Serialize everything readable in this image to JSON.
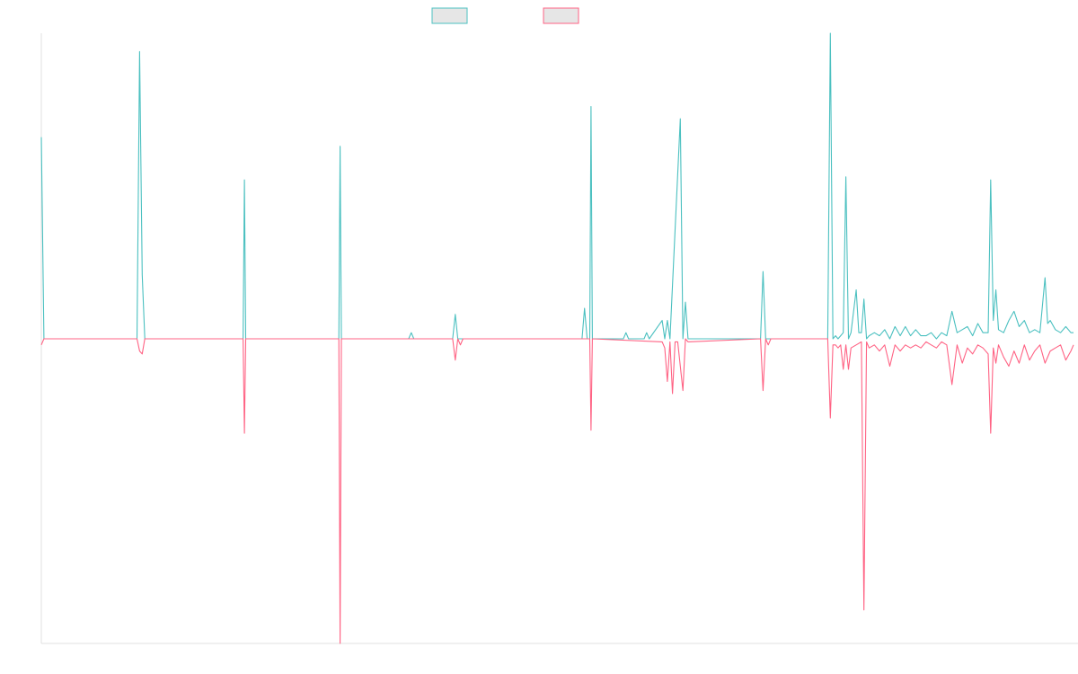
{
  "chart_data": {
    "type": "line",
    "title": "",
    "xlabel": "",
    "ylabel": "",
    "grid": false,
    "legend_position": "top-center",
    "ylim": [
      -1,
      1
    ],
    "x_count": 400,
    "series": [
      {
        "color": "#4bc0c0",
        "fill": "#e6e6e6",
        "points": [
          [
            0,
            0.66
          ],
          [
            1,
            0.0
          ],
          [
            30,
            0.0
          ],
          [
            37,
            0.0
          ],
          [
            38,
            0.94
          ],
          [
            39,
            0.21
          ],
          [
            40,
            0.0
          ],
          [
            78,
            0.0
          ],
          [
            78.5,
            0.52
          ],
          [
            79,
            0.0
          ],
          [
            115,
            0.0
          ],
          [
            115.5,
            0.63
          ],
          [
            116,
            0.0
          ],
          [
            142,
            0.0
          ],
          [
            143,
            0.02
          ],
          [
            144,
            0.0
          ],
          [
            159,
            0.0
          ],
          [
            160,
            0.08
          ],
          [
            161,
            0.0
          ],
          [
            209,
            0.0
          ],
          [
            210,
            0.1
          ],
          [
            211,
            0.0
          ],
          [
            212,
            0.0
          ],
          [
            212.5,
            0.76
          ],
          [
            213,
            0.0
          ],
          [
            225,
            0.0
          ],
          [
            226,
            0.02
          ],
          [
            227,
            0.0
          ],
          [
            233,
            0.0
          ],
          [
            234,
            0.02
          ],
          [
            235,
            0.0
          ],
          [
            240,
            0.06
          ],
          [
            241,
            0.0
          ],
          [
            242,
            0.06
          ],
          [
            243,
            0.0
          ],
          [
            247,
            0.72
          ],
          [
            248,
            0.0
          ],
          [
            249,
            0.12
          ],
          [
            250,
            0.0
          ],
          [
            278,
            0.0
          ],
          [
            279,
            0.22
          ],
          [
            280,
            0.0
          ],
          [
            300,
            0.0
          ],
          [
            304,
            0.0
          ],
          [
            305,
            1.0
          ],
          [
            306,
            0.0
          ],
          [
            307,
            0.01
          ],
          [
            308,
            0.0
          ],
          [
            309,
            0.01
          ],
          [
            310,
            0.02
          ],
          [
            311,
            0.53
          ],
          [
            312,
            0.0
          ],
          [
            313,
            0.02
          ],
          [
            315,
            0.16
          ],
          [
            316,
            0.02
          ],
          [
            317,
            0.02
          ],
          [
            318,
            0.13
          ],
          [
            319,
            0.0
          ],
          [
            320,
            0.01
          ],
          [
            322,
            0.02
          ],
          [
            324,
            0.01
          ],
          [
            326,
            0.03
          ],
          [
            328,
            0.0
          ],
          [
            330,
            0.04
          ],
          [
            332,
            0.01
          ],
          [
            334,
            0.04
          ],
          [
            336,
            0.01
          ],
          [
            338,
            0.03
          ],
          [
            340,
            0.01
          ],
          [
            342,
            0.01
          ],
          [
            344,
            0.02
          ],
          [
            346,
            0.0
          ],
          [
            348,
            0.02
          ],
          [
            350,
            0.01
          ],
          [
            352,
            0.09
          ],
          [
            354,
            0.02
          ],
          [
            356,
            0.03
          ],
          [
            358,
            0.04
          ],
          [
            360,
            0.01
          ],
          [
            362,
            0.05
          ],
          [
            364,
            0.02
          ],
          [
            366,
            0.02
          ],
          [
            367,
            0.52
          ],
          [
            368,
            0.06
          ],
          [
            369,
            0.16
          ],
          [
            370,
            0.03
          ],
          [
            372,
            0.02
          ],
          [
            374,
            0.06
          ],
          [
            376,
            0.09
          ],
          [
            378,
            0.04
          ],
          [
            380,
            0.06
          ],
          [
            382,
            0.02
          ],
          [
            384,
            0.03
          ],
          [
            386,
            0.02
          ],
          [
            388,
            0.2
          ],
          [
            389,
            0.05
          ],
          [
            390,
            0.06
          ],
          [
            392,
            0.03
          ],
          [
            394,
            0.02
          ],
          [
            396,
            0.04
          ],
          [
            398,
            0.02
          ],
          [
            399,
            0.02
          ]
        ]
      },
      {
        "color": "#ff6384",
        "fill": "#e6e6e6",
        "points": [
          [
            0,
            -0.02
          ],
          [
            1,
            0.0
          ],
          [
            30,
            0.0
          ],
          [
            37,
            0.0
          ],
          [
            38,
            -0.04
          ],
          [
            39,
            -0.05
          ],
          [
            40,
            0.0
          ],
          [
            78,
            0.0
          ],
          [
            78.5,
            -0.31
          ],
          [
            79,
            0.0
          ],
          [
            115,
            0.0
          ],
          [
            115.5,
            -1.0
          ],
          [
            116,
            0.0
          ],
          [
            159,
            0.0
          ],
          [
            160,
            -0.07
          ],
          [
            161,
            0.0
          ],
          [
            162,
            -0.02
          ],
          [
            163,
            0.0
          ],
          [
            212,
            0.0
          ],
          [
            212.5,
            -0.3
          ],
          [
            213,
            0.0
          ],
          [
            240,
            -0.01
          ],
          [
            241,
            -0.03
          ],
          [
            242,
            -0.14
          ],
          [
            243,
            -0.01
          ],
          [
            244,
            -0.18
          ],
          [
            245,
            -0.01
          ],
          [
            246,
            -0.01
          ],
          [
            247,
            -0.09
          ],
          [
            248,
            -0.17
          ],
          [
            249,
            0.0
          ],
          [
            250,
            -0.01
          ],
          [
            278,
            0.0
          ],
          [
            279,
            -0.17
          ],
          [
            280,
            0.0
          ],
          [
            281,
            -0.02
          ],
          [
            282,
            0.0
          ],
          [
            304,
            0.0
          ],
          [
            305,
            -0.26
          ],
          [
            306,
            -0.02
          ],
          [
            307,
            -0.02
          ],
          [
            308,
            -0.03
          ],
          [
            309,
            -0.02
          ],
          [
            310,
            -0.1
          ],
          [
            311,
            -0.02
          ],
          [
            312,
            -0.1
          ],
          [
            313,
            -0.03
          ],
          [
            315,
            -0.02
          ],
          [
            317,
            -0.01
          ],
          [
            318,
            -0.89
          ],
          [
            319,
            -0.01
          ],
          [
            320,
            -0.03
          ],
          [
            322,
            -0.02
          ],
          [
            324,
            -0.04
          ],
          [
            326,
            -0.02
          ],
          [
            328,
            -0.09
          ],
          [
            330,
            -0.02
          ],
          [
            332,
            -0.04
          ],
          [
            334,
            -0.02
          ],
          [
            336,
            -0.03
          ],
          [
            338,
            -0.02
          ],
          [
            340,
            -0.03
          ],
          [
            342,
            -0.01
          ],
          [
            344,
            -0.02
          ],
          [
            346,
            -0.03
          ],
          [
            348,
            -0.01
          ],
          [
            350,
            -0.02
          ],
          [
            352,
            -0.15
          ],
          [
            354,
            -0.02
          ],
          [
            356,
            -0.08
          ],
          [
            358,
            -0.03
          ],
          [
            360,
            -0.05
          ],
          [
            362,
            -0.02
          ],
          [
            364,
            -0.03
          ],
          [
            366,
            -0.05
          ],
          [
            367,
            -0.31
          ],
          [
            368,
            -0.03
          ],
          [
            369,
            -0.08
          ],
          [
            370,
            -0.02
          ],
          [
            372,
            -0.06
          ],
          [
            374,
            -0.09
          ],
          [
            376,
            -0.04
          ],
          [
            378,
            -0.08
          ],
          [
            380,
            -0.02
          ],
          [
            382,
            -0.07
          ],
          [
            384,
            -0.04
          ],
          [
            386,
            -0.02
          ],
          [
            388,
            -0.08
          ],
          [
            390,
            -0.04
          ],
          [
            392,
            -0.03
          ],
          [
            394,
            -0.02
          ],
          [
            396,
            -0.07
          ],
          [
            398,
            -0.04
          ],
          [
            399,
            -0.02
          ]
        ]
      }
    ]
  }
}
